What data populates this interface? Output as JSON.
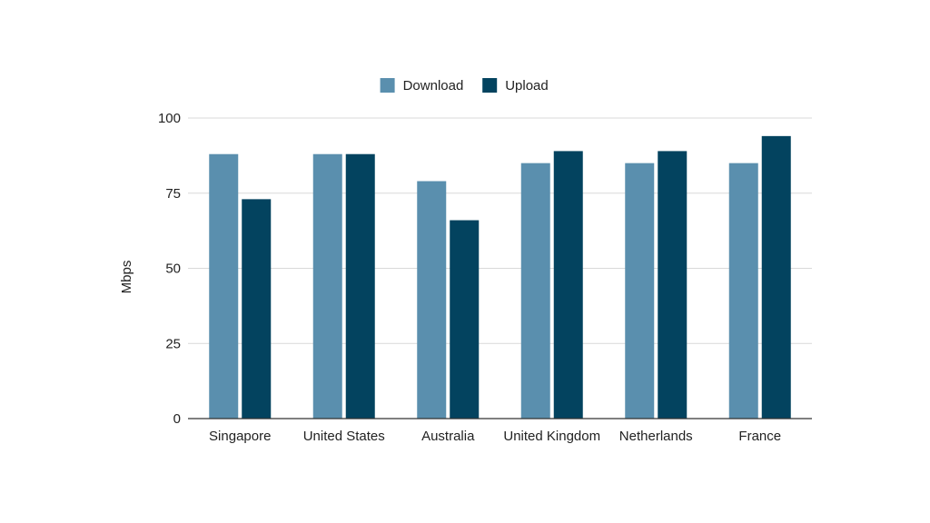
{
  "chart_data": {
    "type": "bar",
    "ylabel": "Mbps",
    "xlabel": "",
    "ylim": [
      0,
      100
    ],
    "yticks": [
      0,
      25,
      50,
      75,
      100
    ],
    "grid": true,
    "legend_position": "top-center",
    "categories": [
      "Singapore",
      "United States",
      "Australia",
      "United Kingdom",
      "Netherlands",
      "France"
    ],
    "series": [
      {
        "name": "Download",
        "color": "#5a8fae",
        "values": [
          88,
          88,
          79,
          85,
          85,
          85
        ]
      },
      {
        "name": "Upload",
        "color": "#03435f",
        "values": [
          73,
          88,
          66,
          89,
          89,
          94
        ]
      }
    ]
  }
}
